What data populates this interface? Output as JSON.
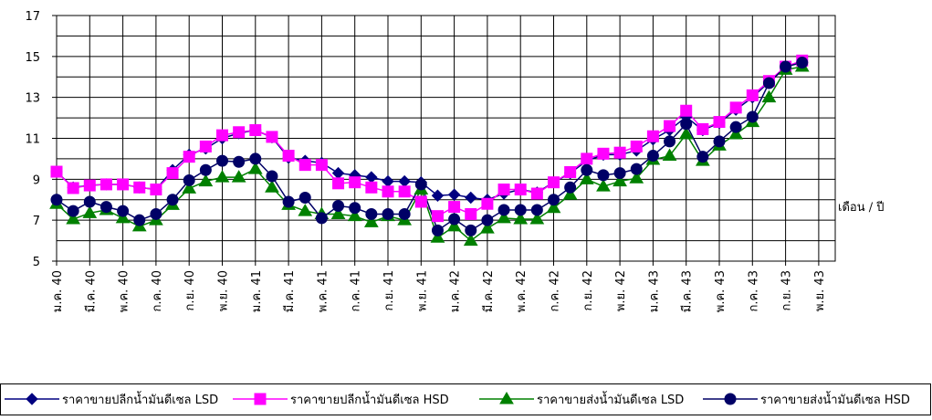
{
  "chart_data": {
    "type": "line",
    "x_label": "เดือน / ปี",
    "categories": [
      "ม.ค. 40",
      null,
      "มี.ค. 40",
      null,
      "พ.ค. 40",
      null,
      "ก.ค. 40",
      null,
      "ก.ย. 40",
      null,
      "พ.ย. 40",
      null,
      "ม.ค. 41",
      null,
      "มี.ค. 41",
      null,
      "พ.ค. 41",
      null,
      "ก.ค. 41",
      null,
      "ก.ย. 41",
      null,
      "พ.ย. 41",
      null,
      "ม.ค. 42",
      null,
      "มี.ค. 42",
      null,
      "พ.ค. 42",
      null,
      "ก.ค. 42",
      null,
      "ก.ย. 42",
      null,
      "พ.ย. 42",
      null,
      "ม.ค. 43",
      null,
      "มี.ค. 43",
      null,
      "พ.ค. 43",
      null,
      "ก.ค. 43",
      null,
      "ก.ย. 43",
      null,
      "พ.ย. 43"
    ],
    "ylim": [
      5,
      17
    ],
    "yticks": [
      5,
      7,
      9,
      11,
      13,
      15,
      17
    ],
    "yminor_ticks": [
      6,
      8,
      10,
      12,
      14,
      16
    ],
    "grid": true,
    "legend": "bottom",
    "series": [
      {
        "name": "ราคาขายปลีกน้ำมันดีเซล LSD",
        "color": "#000080",
        "marker": "diamond",
        "values": [
          9.37,
          8.6,
          8.7,
          8.75,
          8.75,
          8.6,
          8.5,
          9.45,
          10.2,
          10.5,
          11.0,
          11.25,
          11.4,
          11.05,
          10.05,
          9.9,
          9.8,
          9.3,
          9.2,
          9.1,
          8.9,
          8.9,
          8.85,
          8.2,
          8.25,
          8.1,
          8.0,
          8.3,
          8.5,
          8.35,
          8.85,
          9.3,
          9.9,
          10.2,
          10.2,
          10.4,
          10.95,
          11.4,
          12.05,
          11.4,
          11.75,
          12.4,
          13.0,
          13.75,
          14.5,
          14.7,
          null
        ]
      },
      {
        "name": "ราคาขายปลีกน้ำมันดีเซล HSD",
        "color": "#ff00ff",
        "marker": "square",
        "values": [
          9.37,
          8.57,
          8.7,
          8.75,
          8.75,
          8.6,
          8.5,
          9.3,
          10.1,
          10.6,
          11.15,
          11.3,
          11.4,
          11.07,
          10.15,
          9.7,
          9.7,
          8.8,
          8.85,
          8.6,
          8.4,
          8.4,
          7.9,
          7.2,
          7.65,
          7.3,
          7.8,
          8.5,
          8.5,
          8.3,
          8.85,
          9.35,
          10.0,
          10.25,
          10.3,
          10.6,
          11.1,
          11.6,
          12.35,
          11.45,
          11.8,
          12.5,
          13.1,
          13.8,
          14.5,
          14.8,
          null
        ]
      },
      {
        "name": "ราคาขายส่งน้ำมันดีเซล LSD",
        "color": "#008000",
        "marker": "triangle",
        "values": [
          7.8,
          7.05,
          7.35,
          7.5,
          7.1,
          6.7,
          7.0,
          7.75,
          8.55,
          8.9,
          9.1,
          9.1,
          9.5,
          8.6,
          7.75,
          7.45,
          7.3,
          7.3,
          7.2,
          6.9,
          7.2,
          7.0,
          8.5,
          6.15,
          6.7,
          6.0,
          6.6,
          7.1,
          7.05,
          7.05,
          7.6,
          8.25,
          9.0,
          8.65,
          8.9,
          9.05,
          9.95,
          10.15,
          11.2,
          9.9,
          10.65,
          11.2,
          11.8,
          13.0,
          14.35,
          14.5,
          null
        ]
      },
      {
        "name": "ราคาขายส่งน้ำมันดีเซล HSD",
        "color": "#000066",
        "marker": "circle",
        "values": [
          8.0,
          7.45,
          7.9,
          7.65,
          7.45,
          7.0,
          7.3,
          8.0,
          8.95,
          9.45,
          9.9,
          9.85,
          10.0,
          9.15,
          7.9,
          8.1,
          7.1,
          7.7,
          7.6,
          7.3,
          7.3,
          7.3,
          8.75,
          6.5,
          7.05,
          6.5,
          7.0,
          7.5,
          7.5,
          7.5,
          8.0,
          8.6,
          9.45,
          9.2,
          9.3,
          9.5,
          10.15,
          10.85,
          11.7,
          10.1,
          10.85,
          11.55,
          12.05,
          13.7,
          14.5,
          14.7,
          null
        ]
      }
    ]
  }
}
